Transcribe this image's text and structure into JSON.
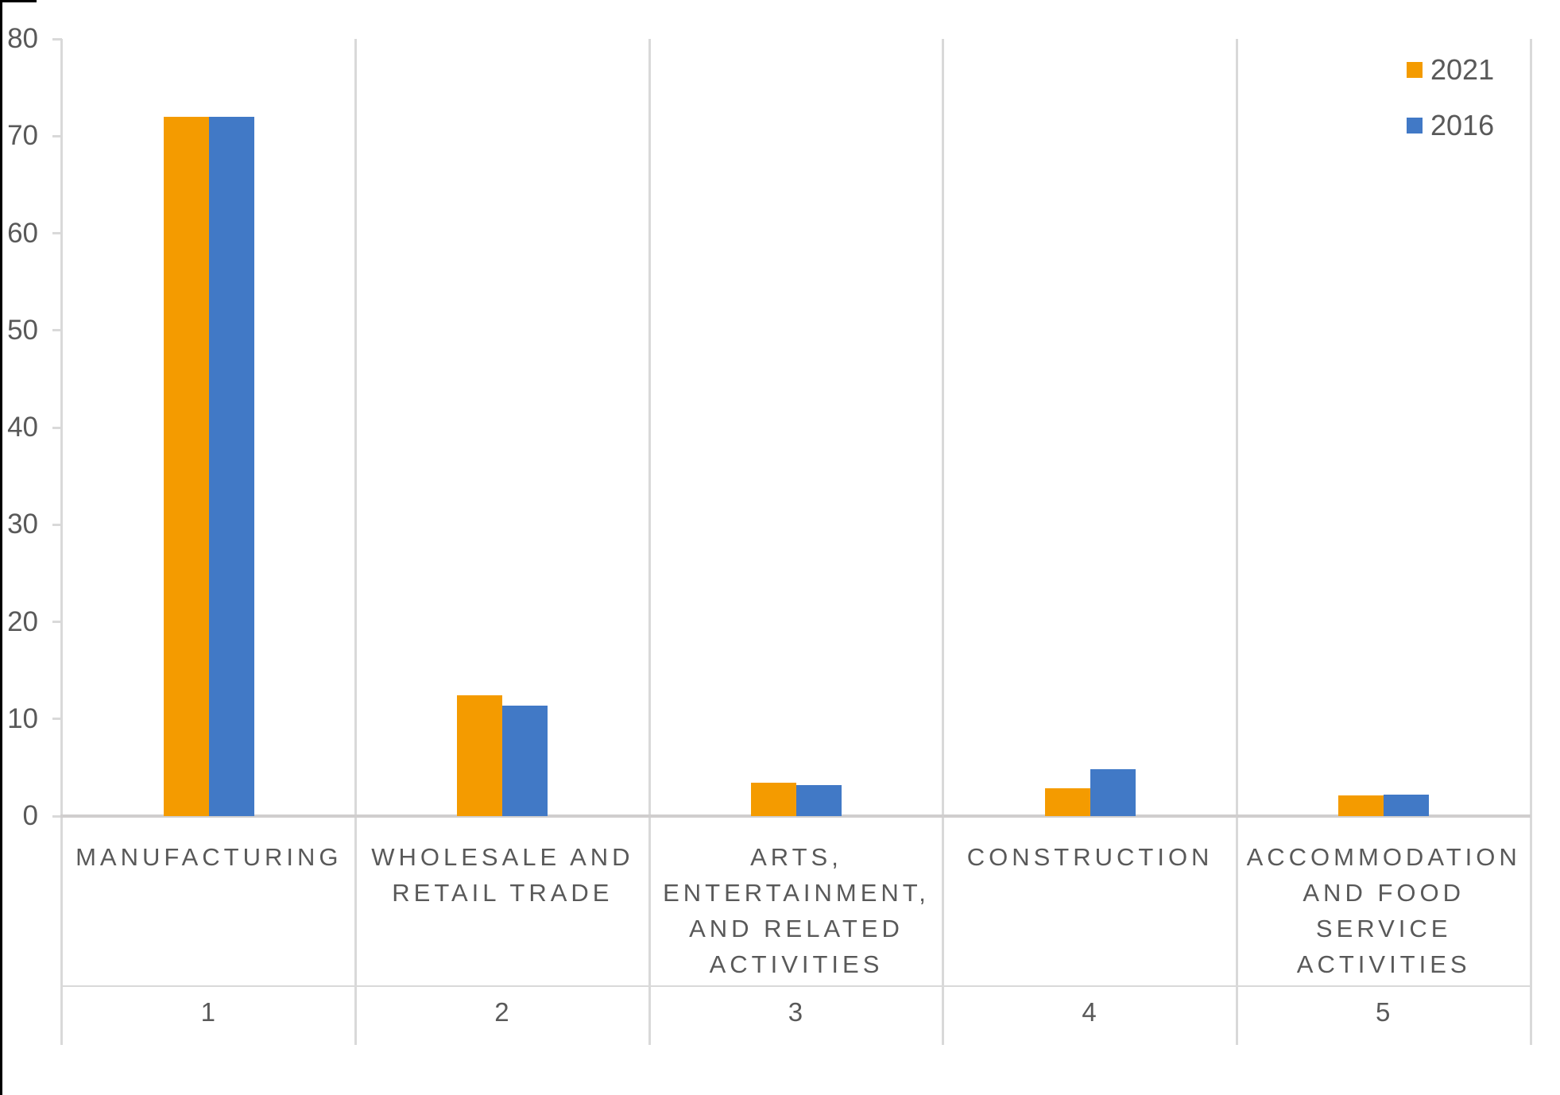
{
  "chart_data": {
    "type": "bar",
    "title": "",
    "categories": [
      {
        "label": "MANUFACTURING",
        "number": "1"
      },
      {
        "label": "WHOLESALE AND\nRETAIL TRADE",
        "number": "2"
      },
      {
        "label": "ARTS,\nENTERTAINMENT,\nAND RELATED\nACTIVITIES",
        "number": "3"
      },
      {
        "label": "CONSTRUCTION",
        "number": "4"
      },
      {
        "label": "ACCOMMODATION\nAND FOOD\nSERVICE\nACTIVITIES",
        "number": "5"
      }
    ],
    "series": [
      {
        "name": "2021",
        "color": "#F49B00",
        "values": [
          72,
          12.4,
          3.4,
          2.9,
          2.1
        ]
      },
      {
        "name": "2016",
        "color": "#4179C6",
        "values": [
          72,
          11.4,
          3.2,
          4.8,
          2.2
        ]
      }
    ],
    "y_axis": {
      "min": 0,
      "max": 80,
      "step": 10,
      "tick_labels": [
        "0",
        "10",
        "20",
        "30",
        "40",
        "50",
        "60",
        "70",
        "80"
      ]
    },
    "legend": {
      "position": "top-right"
    },
    "grid": {
      "vertical_separators": true,
      "horizontal_gridlines": false
    }
  },
  "colors": {
    "text": "#595959",
    "grid_line": "#D9D9D9",
    "baseline": "#D0CECE",
    "frame_edge": "#000000",
    "background": "#FFFFFF"
  }
}
